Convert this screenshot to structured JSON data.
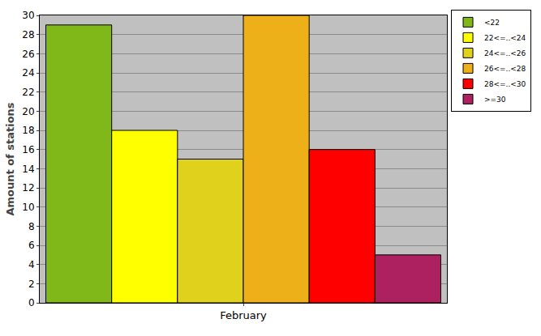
{
  "chart_data": {
    "type": "bar",
    "categories": [
      "February"
    ],
    "y_label": "Amount of stations",
    "series": [
      {
        "name": "<22",
        "color": "#80b719",
        "values": [
          29
        ]
      },
      {
        "name": "22<=..<24",
        "color": "#ffff00",
        "values": [
          18
        ]
      },
      {
        "name": "24<=..<26",
        "color": "#e0d21c",
        "values": [
          15
        ]
      },
      {
        "name": "26<=..<28",
        "color": "#eeb018",
        "values": [
          30
        ]
      },
      {
        "name": "28<=..<30",
        "color": "#ff0000",
        "values": [
          16
        ]
      },
      {
        "name": ">=30",
        "color": "#ad2160",
        "values": [
          5
        ]
      }
    ],
    "ylim": [
      0,
      30
    ],
    "yticks": [
      0,
      2,
      4,
      6,
      8,
      10,
      12,
      14,
      16,
      18,
      20,
      22,
      24,
      26,
      28,
      30
    ],
    "grid": true,
    "legend": "top-right"
  }
}
